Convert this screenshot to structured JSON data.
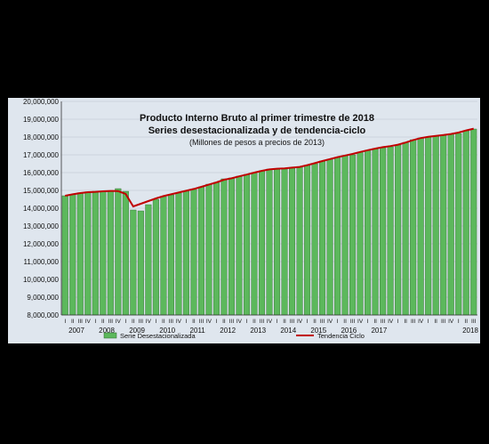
{
  "chart_data": {
    "type": "bar",
    "title": "Producto Interno Bruto al primer trimestre de 2018",
    "subtitle": "Series desestacionalizada y de tendencia-ciclo",
    "subtitle2": "(Millones de pesos a precios de 2013)",
    "ylim": [
      8000000,
      20000000
    ],
    "yticks": [
      "8,000,000",
      "9,000,000",
      "10,000,000",
      "11,000,000",
      "12,000,000",
      "13,000,000",
      "14,000,000",
      "15,000,000",
      "16,000,000",
      "17,000,000",
      "18,000,000",
      "19,000,000",
      "20,000,000"
    ],
    "ytick_values": [
      8000000,
      9000000,
      10000000,
      11000000,
      12000000,
      13000000,
      14000000,
      15000000,
      16000000,
      17000000,
      18000000,
      19000000,
      20000000
    ],
    "quarter_labels": [
      "I",
      "II",
      "III",
      "IV"
    ],
    "years": [
      "2007",
      "2008",
      "2009",
      "2010",
      "2011",
      "2012",
      "2013",
      "2014",
      "2015",
      "2016",
      "2017",
      "2018"
    ],
    "grid": true,
    "legend_position": "bottom",
    "series": [
      {
        "name": "Serie Desestacionalizada",
        "color": "#5cb85c",
        "values": [
          14700000,
          14780000,
          14870000,
          14920000,
          14950000,
          14960000,
          14990000,
          15100000,
          14950000,
          13900000,
          13850000,
          14200000,
          14500000,
          14650000,
          14750000,
          14850000,
          14950000,
          15050000,
          15200000,
          15350000,
          15450000,
          15650000,
          15700000,
          15800000,
          15900000,
          16000000,
          16100000,
          16200000,
          16200000,
          16200000,
          16250000,
          16300000,
          16400000,
          16500000,
          16650000,
          16750000,
          16850000,
          16950000,
          17000000,
          17150000,
          17250000,
          17350000,
          17400000,
          17450000,
          17550000,
          17700000,
          17850000,
          17950000,
          18000000,
          18050000,
          18100000,
          18150000,
          18200000,
          18350000,
          18450000
        ]
      },
      {
        "name": "Tendencia Ciclo",
        "color": "#c00000",
        "values": [
          14700000,
          14780000,
          14850000,
          14900000,
          14920000,
          14950000,
          14970000,
          14960000,
          14800000,
          14100000,
          14250000,
          14400000,
          14550000,
          14680000,
          14780000,
          14880000,
          14980000,
          15080000,
          15200000,
          15330000,
          15450000,
          15600000,
          15680000,
          15790000,
          15890000,
          16000000,
          16100000,
          16180000,
          16220000,
          16240000,
          16280000,
          16320000,
          16420000,
          16530000,
          16650000,
          16760000,
          16870000,
          16960000,
          17050000,
          17160000,
          17260000,
          17350000,
          17430000,
          17490000,
          17570000,
          17690000,
          17830000,
          17940000,
          18010000,
          18060000,
          18110000,
          18170000,
          18250000,
          18370000,
          18470000
        ]
      }
    ]
  }
}
